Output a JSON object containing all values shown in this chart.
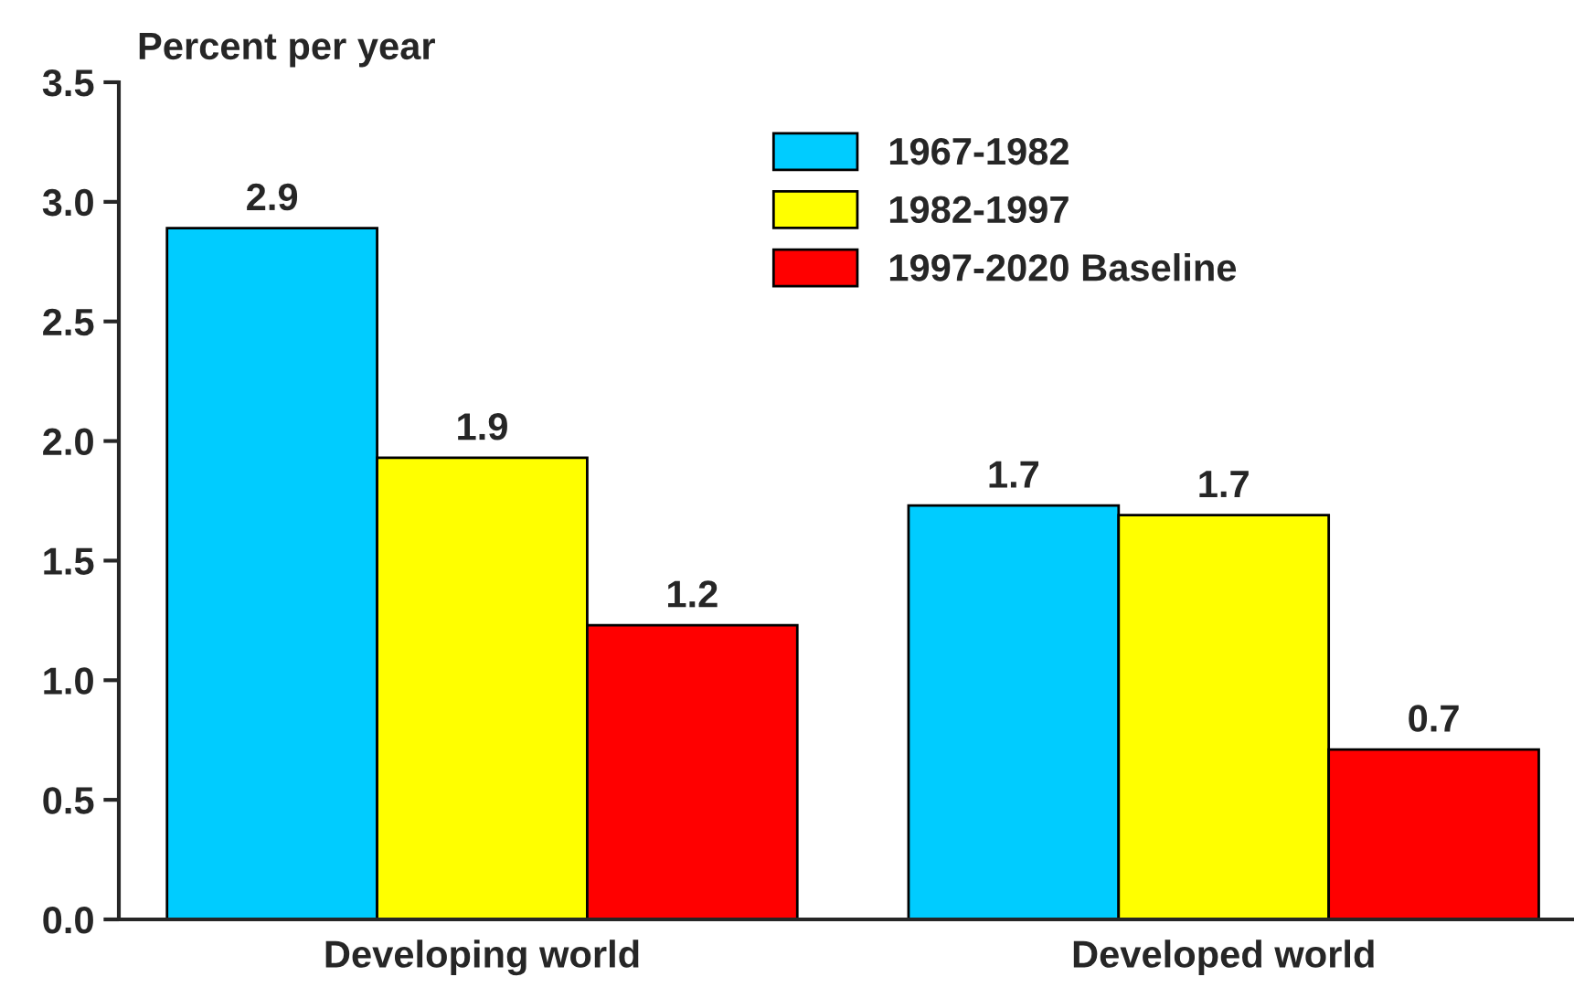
{
  "chart_data": {
    "type": "bar",
    "ylabel": "Percent per year",
    "categories": [
      "Developing world",
      "Developed world"
    ],
    "series": [
      {
        "name": "1967-1982",
        "color": "#00ccff",
        "values": [
          2.89,
          1.73
        ],
        "value_labels": [
          "2.9",
          "1.7"
        ]
      },
      {
        "name": "1982-1997",
        "color": "#ffff00",
        "values": [
          1.93,
          1.69
        ],
        "value_labels": [
          "1.9",
          "1.7"
        ]
      },
      {
        "name": "1997-2020 Baseline",
        "color": "#ff0000",
        "values": [
          1.23,
          0.71
        ],
        "value_labels": [
          "1.2",
          "0.7"
        ]
      }
    ],
    "ylim": [
      0,
      3.5
    ],
    "yticks": [
      {
        "value": 0,
        "label": "0.0"
      },
      {
        "value": 0.5,
        "label": "0.5"
      },
      {
        "value": 1,
        "label": "1.0"
      },
      {
        "value": 1.5,
        "label": "1.5"
      },
      {
        "value": 2,
        "label": "2.0"
      },
      {
        "value": 2.5,
        "label": "2.5"
      },
      {
        "value": 3,
        "label": "3.0"
      },
      {
        "value": 3.5,
        "label": "3.5"
      }
    ],
    "grid": false,
    "legend": "top"
  }
}
